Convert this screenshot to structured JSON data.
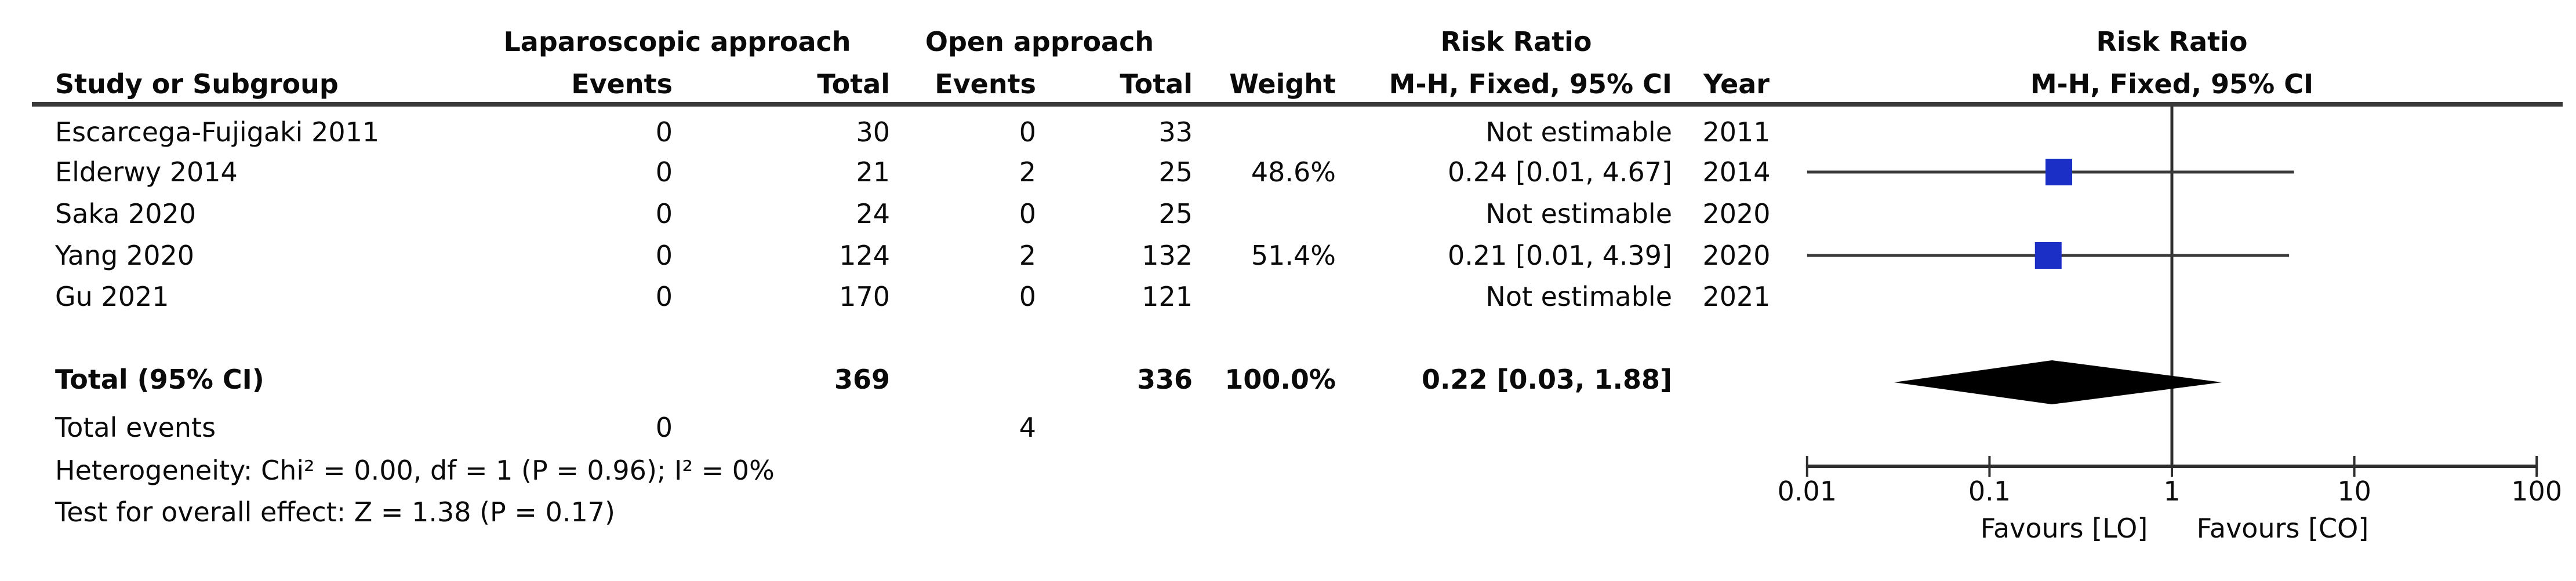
{
  "table": {
    "group_headers": {
      "laparoscopic": "Laparoscopic approach",
      "open": "Open approach",
      "risk_ratio": "Risk Ratio",
      "risk_ratio_method": "M-H, Fixed, 95% CI"
    },
    "columns": {
      "study": "Study or Subgroup",
      "events_lap": "Events",
      "total_lap": "Total",
      "events_open": "Events",
      "total_open": "Total",
      "weight": "Weight",
      "mh_ci": "M-H, Fixed, 95% CI",
      "year": "Year"
    }
  },
  "studies": [
    {
      "name": "Escarcega-Fujigaki 2011",
      "events_lap": "0",
      "total_lap": "30",
      "events_open": "0",
      "total_open": "33",
      "weight": "",
      "rr_text": "Not estimable",
      "year": "2011",
      "rr": null,
      "ci_low": null,
      "ci_high": null
    },
    {
      "name": "Elderwy 2014",
      "events_lap": "0",
      "total_lap": "21",
      "events_open": "2",
      "total_open": "25",
      "weight": "48.6%",
      "rr_text": "0.24 [0.01, 4.67]",
      "year": "2014",
      "rr": 0.24,
      "ci_low": 0.01,
      "ci_high": 4.67
    },
    {
      "name": "Saka 2020",
      "events_lap": "0",
      "total_lap": "24",
      "events_open": "0",
      "total_open": "25",
      "weight": "",
      "rr_text": "Not estimable",
      "year": "2020",
      "rr": null,
      "ci_low": null,
      "ci_high": null
    },
    {
      "name": "Yang 2020",
      "events_lap": "0",
      "total_lap": "124",
      "events_open": "2",
      "total_open": "132",
      "weight": "51.4%",
      "rr_text": "0.21 [0.01, 4.39]",
      "year": "2020",
      "rr": 0.21,
      "ci_low": 0.01,
      "ci_high": 4.39
    },
    {
      "name": "Gu 2021",
      "events_lap": "0",
      "total_lap": "170",
      "events_open": "0",
      "total_open": "121",
      "weight": "",
      "rr_text": "Not estimable",
      "year": "2021",
      "rr": null,
      "ci_low": null,
      "ci_high": null
    }
  ],
  "total": {
    "label": "Total (95% CI)",
    "total_lap": "369",
    "total_open": "336",
    "weight": "100.0%",
    "rr_text": "0.22 [0.03, 1.88]",
    "rr": 0.22,
    "ci_low": 0.03,
    "ci_high": 1.88
  },
  "total_events": {
    "label": "Total events",
    "events_lap": "0",
    "events_open": "4"
  },
  "footnotes": {
    "heterogeneity": "Heterogeneity: Chi² = 0.00, df = 1 (P = 0.96); I² = 0%",
    "overall_effect": "Test for overall effect: Z = 1.38 (P = 0.17)"
  },
  "plot": {
    "risk_ratio": "Risk Ratio",
    "method": "M-H, Fixed, 95% CI",
    "tick_labels": [
      "0.01",
      "0.1",
      "1",
      "10",
      "100"
    ],
    "favours_left": "Favours [LO]",
    "favours_right": "Favours [CO]"
  },
  "colors": {
    "square": "#1b2fc7",
    "diamond": "#000000",
    "ci_line": "#3a3a3a",
    "axis": "#2f2f2f"
  },
  "chart_data": {
    "type": "forest",
    "effect_measure": "Risk Ratio",
    "method": "M-H, Fixed, 95% CI",
    "x_scale": "log10",
    "x_ticks": [
      0.01,
      0.1,
      1,
      10,
      100
    ],
    "xlim": [
      0.01,
      100
    ],
    "null_line": 1,
    "favours_left": "Favours [LO]",
    "favours_right": "Favours [CO]",
    "studies": [
      {
        "name": "Escarcega-Fujigaki 2011",
        "year": 2011,
        "events_lap": 0,
        "total_lap": 30,
        "events_open": 0,
        "total_open": 33,
        "rr": null,
        "ci": null,
        "weight_pct": null,
        "note": "Not estimable"
      },
      {
        "name": "Elderwy 2014",
        "year": 2014,
        "events_lap": 0,
        "total_lap": 21,
        "events_open": 2,
        "total_open": 25,
        "rr": 0.24,
        "ci": [
          0.01,
          4.67
        ],
        "weight_pct": 48.6
      },
      {
        "name": "Saka 2020",
        "year": 2020,
        "events_lap": 0,
        "total_lap": 24,
        "events_open": 0,
        "total_open": 25,
        "rr": null,
        "ci": null,
        "weight_pct": null,
        "note": "Not estimable"
      },
      {
        "name": "Yang 2020",
        "year": 2020,
        "events_lap": 0,
        "total_lap": 124,
        "events_open": 2,
        "total_open": 132,
        "rr": 0.21,
        "ci": [
          0.01,
          4.39
        ],
        "weight_pct": 51.4
      },
      {
        "name": "Gu 2021",
        "year": 2021,
        "events_lap": 0,
        "total_lap": 170,
        "events_open": 0,
        "total_open": 121,
        "rr": null,
        "ci": null,
        "weight_pct": null,
        "note": "Not estimable"
      }
    ],
    "total": {
      "label": "Total (95% CI)",
      "total_lap": 369,
      "total_open": 336,
      "weight_pct": 100.0,
      "rr": 0.22,
      "ci": [
        0.03,
        1.88
      ]
    },
    "total_events": {
      "lap": 0,
      "open": 4
    },
    "heterogeneity": {
      "chi2": 0.0,
      "df": 1,
      "p": 0.96,
      "i2_pct": 0
    },
    "overall_effect": {
      "z": 1.38,
      "p": 0.17
    }
  }
}
